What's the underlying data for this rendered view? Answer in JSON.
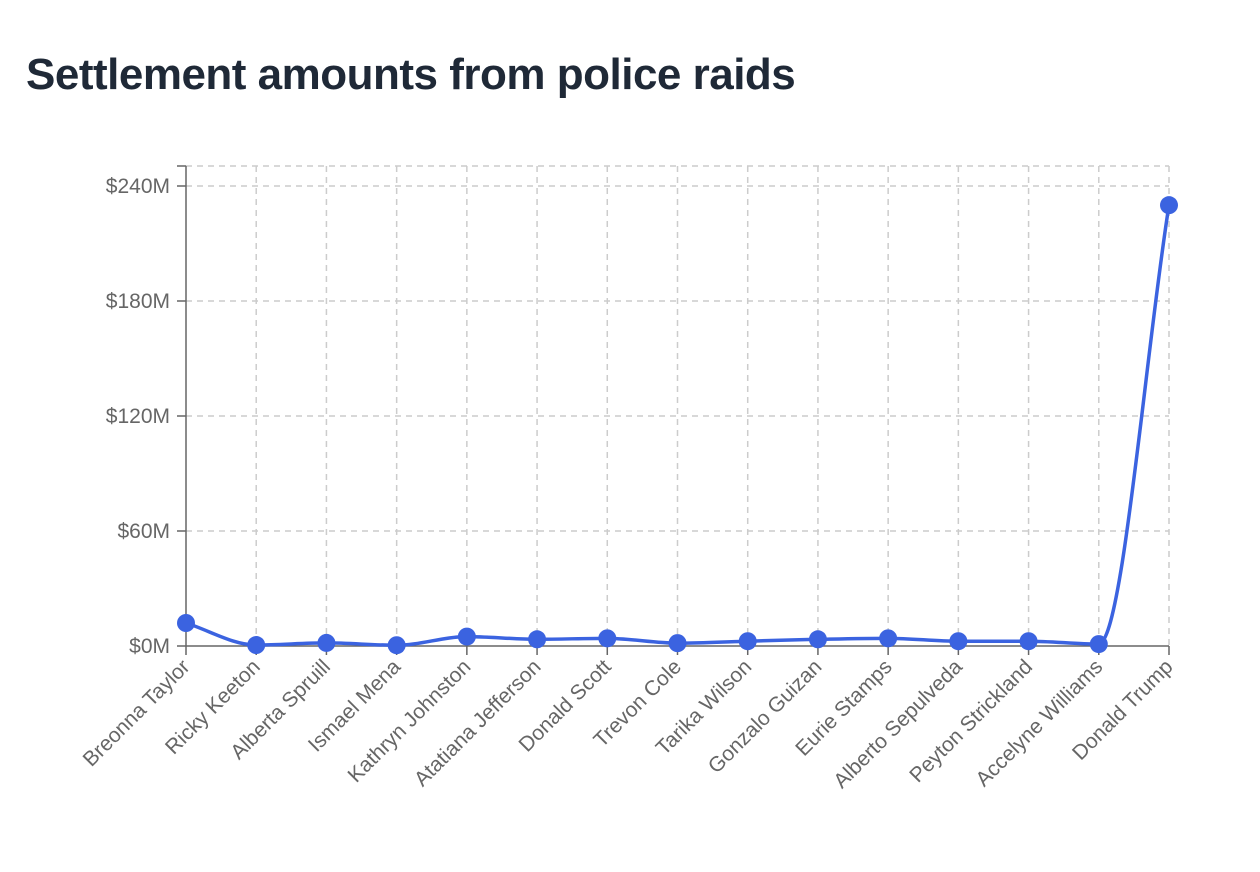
{
  "colors": {
    "series": "#3b63e0",
    "title": "#1f2937",
    "grid": "#cccccc",
    "axis": "#666666"
  },
  "chart_data": {
    "type": "line",
    "title": "Settlement amounts from police raids",
    "xlabel": "",
    "ylabel": "",
    "ylim": [
      0,
      240
    ],
    "yticks": [
      0,
      60,
      120,
      180,
      240
    ],
    "ytick_labels": [
      "$0M",
      "$60M",
      "$120M",
      "$180M",
      "$240M"
    ],
    "grid": true,
    "curve": "smooth",
    "categories": [
      "Breonna Taylor",
      "Ricky Keeton",
      "Alberta Spruill",
      "Ismael Mena",
      "Kathryn Johnston",
      "Atatiana Jefferson",
      "Donald Scott",
      "Trevon Cole",
      "Tarika Wilson",
      "Gonzalo Guizan",
      "Eurie Stamps",
      "Alberto Sepulveda",
      "Peyton Strickland",
      "Accelyne Williams",
      "Donald Trump"
    ],
    "series": [
      {
        "name": "Settlement amount ($M)",
        "values": [
          12,
          0.5,
          1.6,
          0.4,
          4.9,
          3.5,
          4,
          1.5,
          2.5,
          3.5,
          4,
          2.5,
          2.5,
          1,
          230
        ]
      }
    ]
  }
}
